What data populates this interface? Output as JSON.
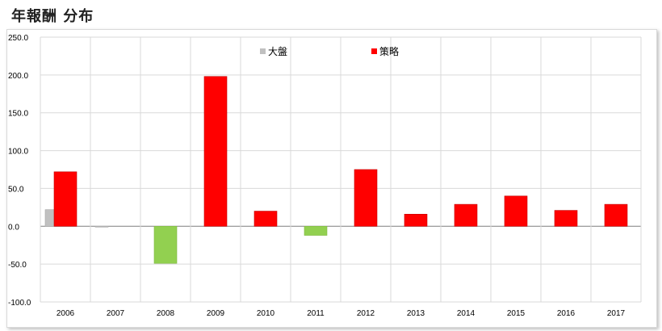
{
  "title": "年報酬 分布",
  "chart_data": {
    "type": "bar",
    "title": "年報酬 分布",
    "xlabel": "",
    "ylabel": "",
    "categories": [
      "2006",
      "2007",
      "2008",
      "2009",
      "2010",
      "2011",
      "2012",
      "2013",
      "2014",
      "2015",
      "2016",
      "2017"
    ],
    "series": [
      {
        "name": "大盤",
        "color": "#c0c0c0",
        "values": [
          22,
          -1,
          null,
          null,
          null,
          null,
          null,
          null,
          null,
          null,
          null,
          null
        ]
      },
      {
        "name": "策略",
        "color": "#ff0000",
        "values": [
          72,
          null,
          -49,
          198,
          20,
          -12,
          75,
          16,
          29,
          40,
          21,
          29
        ]
      }
    ],
    "negative_color": "#92d050",
    "ylim": [
      -100,
      250
    ],
    "yticks": [
      "250.0",
      "200.0",
      "150.0",
      "100.0",
      "50.0",
      "0.0",
      "-50.0",
      "-100.0"
    ],
    "grid": true,
    "legend_position": "top"
  }
}
